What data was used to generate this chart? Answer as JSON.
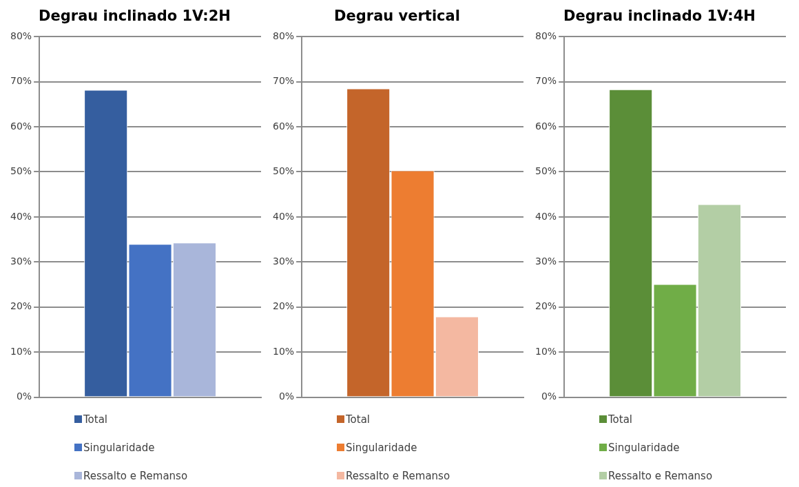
{
  "chart_data": [
    {
      "type": "bar",
      "title": "Degrau inclinado 1V:2H",
      "categories": [
        null
      ],
      "series": [
        {
          "name": "Total",
          "color": "#355e9f",
          "values": [
            68.2
          ]
        },
        {
          "name": "Singularidade",
          "color": "#4472c4",
          "values": [
            34.0
          ]
        },
        {
          "name": "Ressalto e Remanso",
          "color": "#a9b6da",
          "values": [
            34.3
          ]
        }
      ],
      "ylim": [
        0,
        80
      ],
      "yticks": [
        {
          "value": 0,
          "label": "0%"
        },
        {
          "value": 10,
          "label": "10%"
        },
        {
          "value": 20,
          "label": "20%"
        },
        {
          "value": 30,
          "label": "30%"
        },
        {
          "value": 40,
          "label": "40%"
        },
        {
          "value": 50,
          "label": "50%"
        },
        {
          "value": 60,
          "label": "60%"
        },
        {
          "value": 70,
          "label": "70%"
        },
        {
          "value": 80,
          "label": "80%"
        }
      ],
      "grid": "y",
      "legend": "bottom"
    },
    {
      "type": "bar",
      "title": "Degrau vertical",
      "categories": [
        null
      ],
      "series": [
        {
          "name": "Total",
          "color": "#c4652a",
          "values": [
            68.5
          ]
        },
        {
          "name": "Singularidade",
          "color": "#ed7d31",
          "values": [
            50.3
          ]
        },
        {
          "name": "Ressalto e Remanso",
          "color": "#f4b8a1",
          "values": [
            17.9
          ]
        }
      ],
      "ylim": [
        0,
        80
      ],
      "yticks": [
        {
          "value": 0,
          "label": "0%"
        },
        {
          "value": 10,
          "label": "10%"
        },
        {
          "value": 20,
          "label": "20%"
        },
        {
          "value": 30,
          "label": "30%"
        },
        {
          "value": 40,
          "label": "40%"
        },
        {
          "value": 50,
          "label": "50%"
        },
        {
          "value": 60,
          "label": "60%"
        },
        {
          "value": 70,
          "label": "70%"
        },
        {
          "value": 80,
          "label": "80%"
        }
      ],
      "grid": "y",
      "legend": "bottom"
    },
    {
      "type": "bar",
      "title": "Degrau inclinado 1V:4H",
      "categories": [
        null
      ],
      "series": [
        {
          "name": "Total",
          "color": "#5b8e38",
          "values": [
            68.3
          ]
        },
        {
          "name": "Singularidade",
          "color": "#70ad47",
          "values": [
            25.1
          ]
        },
        {
          "name": "Ressalto e Remanso",
          "color": "#b3cea5",
          "values": [
            42.8
          ]
        }
      ],
      "ylim": [
        0,
        80
      ],
      "yticks": [
        {
          "value": 0,
          "label": "0%"
        },
        {
          "value": 10,
          "label": "10%"
        },
        {
          "value": 20,
          "label": "20%"
        },
        {
          "value": 30,
          "label": "30%"
        },
        {
          "value": 40,
          "label": "40%"
        },
        {
          "value": 50,
          "label": "50%"
        },
        {
          "value": 60,
          "label": "60%"
        },
        {
          "value": 70,
          "label": "70%"
        },
        {
          "value": 80,
          "label": "80%"
        }
      ],
      "grid": "y",
      "legend": "bottom"
    }
  ]
}
